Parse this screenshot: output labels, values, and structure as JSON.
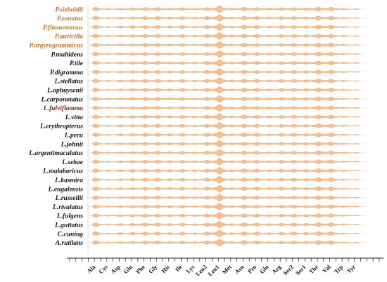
{
  "chart_data": {
    "type": "violin",
    "title": "",
    "xlabel": "",
    "ylabel": "",
    "species": [
      {
        "name": "P.sieboldii",
        "color": "#c8742a"
      },
      {
        "name": "P.zonatus",
        "color": "#c8742a"
      },
      {
        "name": "P.filamentosus",
        "color": "#c8742a"
      },
      {
        "name": "P.auricilla",
        "color": "#c8742a"
      },
      {
        "name": "P.argyrogrammicus",
        "color": "#c8742a"
      },
      {
        "name": "P.multidens",
        "color": "#111111"
      },
      {
        "name": "P.tile",
        "color": "#111111"
      },
      {
        "name": "P.digramma",
        "color": "#111111"
      },
      {
        "name": "L.stellatus",
        "color": "#111111"
      },
      {
        "name": "L.ophuysenii",
        "color": "#111111"
      },
      {
        "name": "L.carponotatus",
        "color": "#111111"
      },
      {
        "name": "L.fulviflamma",
        "color": "#8b1a1a"
      },
      {
        "name": "L.vitta",
        "color": "#111111"
      },
      {
        "name": "L.erythropterus",
        "color": "#111111"
      },
      {
        "name": "L.peru",
        "color": "#111111"
      },
      {
        "name": "L.johnii",
        "color": "#111111"
      },
      {
        "name": "L.argentimaculatus",
        "color": "#111111"
      },
      {
        "name": "L.sebae",
        "color": "#111111"
      },
      {
        "name": "L.malabaricus",
        "color": "#111111"
      },
      {
        "name": "L.kasmira",
        "color": "#111111"
      },
      {
        "name": "L.engalensis",
        "color": "#111111"
      },
      {
        "name": "L.russellii",
        "color": "#111111"
      },
      {
        "name": "L.rivulatus",
        "color": "#111111"
      },
      {
        "name": "L.fulgens",
        "color": "#111111"
      },
      {
        "name": "L.guttatus",
        "color": "#111111"
      },
      {
        "name": "C.cuning",
        "color": "#111111"
      },
      {
        "name": "A.rutilans",
        "color": "#111111"
      }
    ],
    "amino_acids": [
      "Ala",
      "Cys",
      "Asp",
      "Glu",
      "Phe",
      "Gly",
      "His",
      "Ile",
      "Lys",
      "Leu2",
      "Leu1",
      "Met",
      "Asn",
      "Pro",
      "Gln",
      "Arg",
      "Ser2",
      "Ser1",
      "Thr",
      "Val",
      "Trp",
      "Tyr"
    ],
    "relative_width": [
      0.55,
      0.18,
      0.3,
      0.38,
      0.5,
      0.48,
      0.33,
      0.42,
      0.25,
      0.5,
      1.0,
      0.3,
      0.55,
      0.48,
      0.3,
      0.42,
      0.45,
      0.38,
      0.62,
      0.55,
      0.2,
      0.12
    ],
    "fill_color": "#f5b987",
    "edge_color": "#e0a060",
    "accent_color": "#a8c88a",
    "grid": false
  }
}
